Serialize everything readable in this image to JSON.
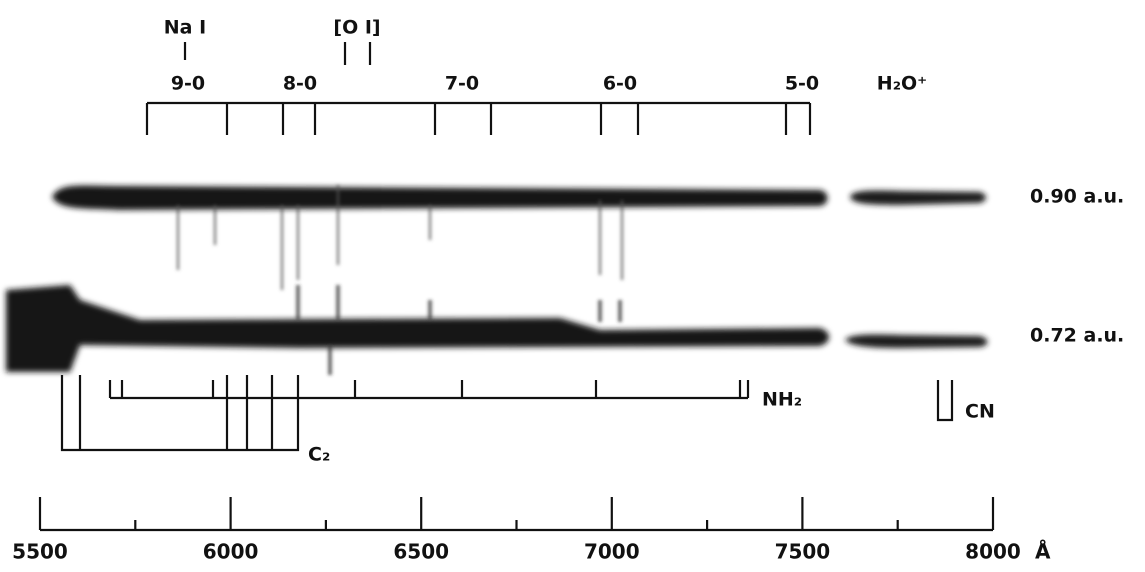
{
  "labels": {
    "na": "Na I",
    "o": "[O I]",
    "h2o": "H₂O⁺",
    "nh2": "NH₂",
    "c2": "C₂",
    "cn": "CN"
  },
  "bands": [
    "9-0",
    "8-0",
    "7-0",
    "6-0",
    "5-0"
  ],
  "spectra": [
    "0.90 a.u.",
    "0.72 a.u."
  ],
  "axis": {
    "ticks": [
      5500,
      6000,
      6500,
      7000,
      7500,
      8000
    ],
    "unit": "Å"
  }
}
